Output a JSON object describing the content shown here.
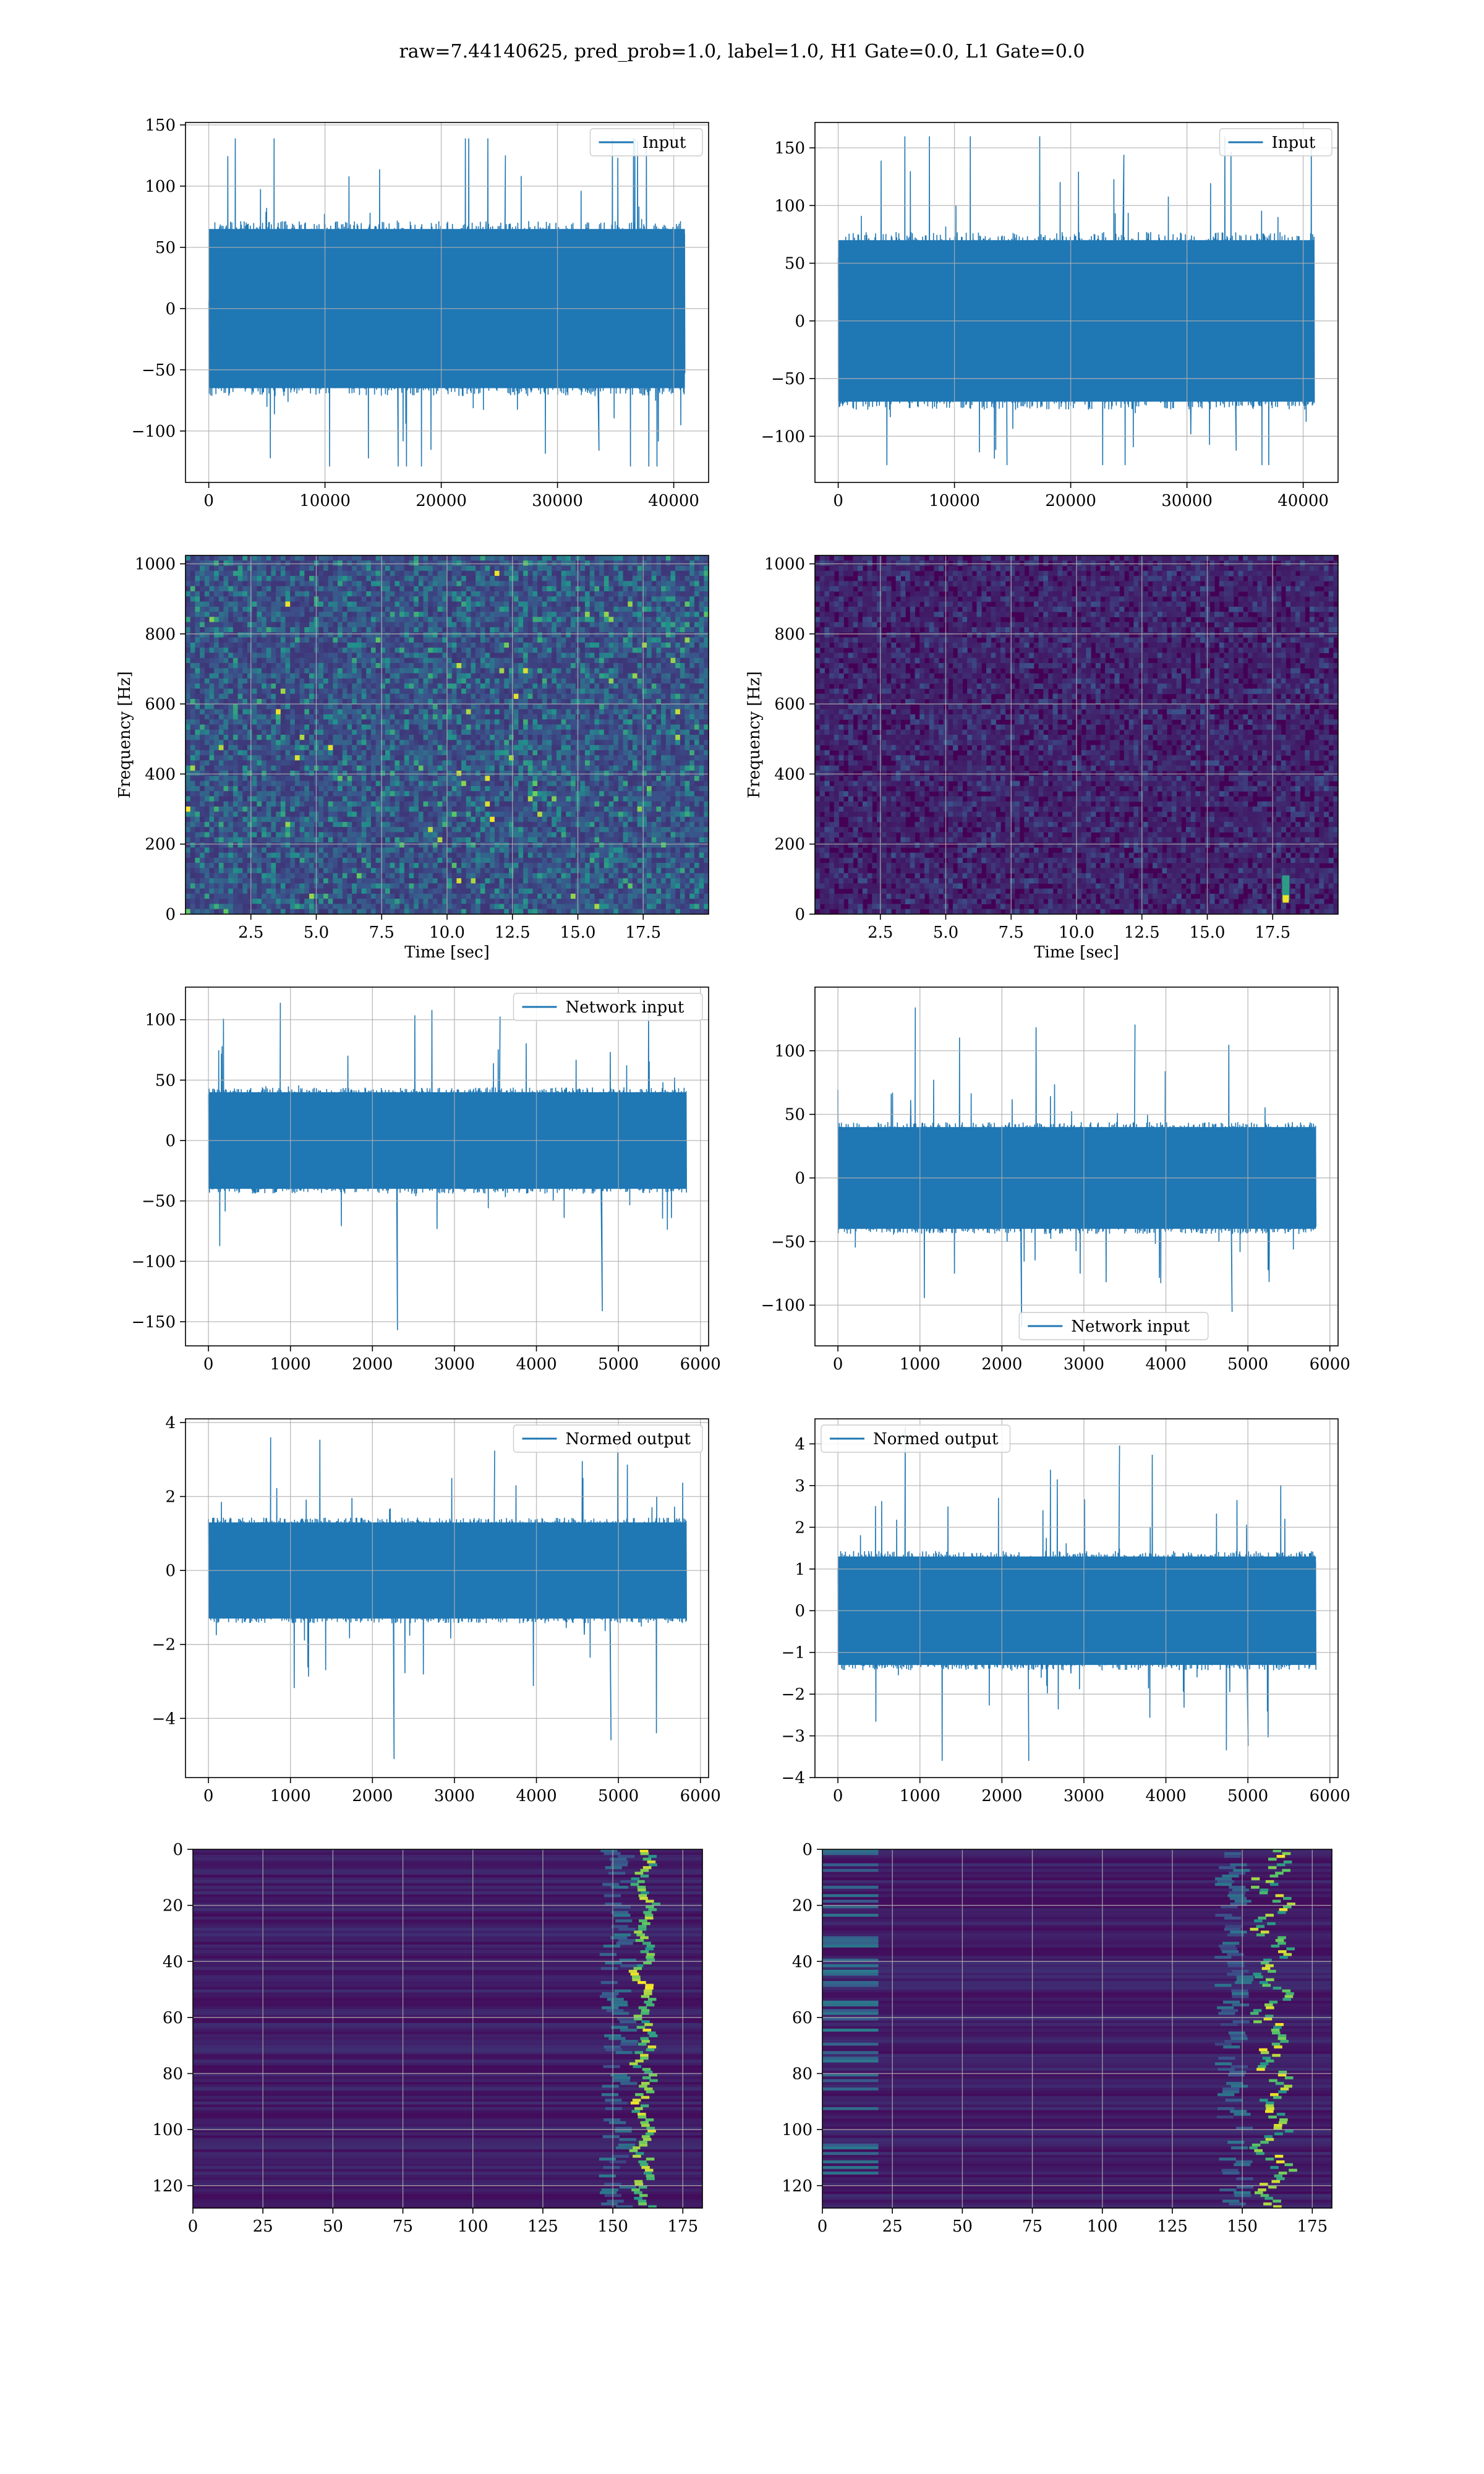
{
  "figure": {
    "title": "raw=7.44140625, pred_prob=1.0, label=1.0, H1 Gate=0.0, L1 Gate=0.0"
  },
  "colors": {
    "line": "#1f77b4",
    "grid": "#b0b0b0",
    "viridis": [
      "#440154",
      "#3b528b",
      "#21918c",
      "#5ec962",
      "#fde725"
    ]
  },
  "chart_data": [
    {
      "id": "p1",
      "type": "line",
      "title": "",
      "xlabel": "",
      "ylabel": "",
      "xlim": [
        -2000,
        43000
      ],
      "ylim": [
        -142,
        152
      ],
      "xticks": [
        0,
        10000,
        20000,
        30000,
        40000
      ],
      "xticklabels": [
        "0",
        "10000",
        "20000",
        "30000",
        "40000"
      ],
      "yticks": [
        -100,
        -50,
        0,
        50,
        100,
        150
      ],
      "yticklabels": [
        "−100",
        "−50",
        "0",
        "50",
        "100",
        "150"
      ],
      "grid": true,
      "legend": {
        "loc": "upper right",
        "entries": [
          "Input"
        ]
      },
      "series": [
        {
          "name": "Input",
          "x_range": [
            0,
            40960
          ],
          "y_envelope": [
            -129,
            139
          ],
          "typical_band": [
            -65,
            65
          ]
        }
      ]
    },
    {
      "id": "p2",
      "type": "line",
      "title": "",
      "xlabel": "",
      "ylabel": "",
      "xlim": [
        -2000,
        43000
      ],
      "ylim": [
        -140,
        172
      ],
      "xticks": [
        0,
        10000,
        20000,
        30000,
        40000
      ],
      "xticklabels": [
        "0",
        "10000",
        "20000",
        "30000",
        "40000"
      ],
      "yticks": [
        -100,
        -50,
        0,
        50,
        100,
        150
      ],
      "yticklabels": [
        "−100",
        "−50",
        "0",
        "50",
        "100",
        "150"
      ],
      "grid": true,
      "legend": {
        "loc": "upper right",
        "entries": [
          "Input"
        ]
      },
      "series": [
        {
          "name": "Input",
          "x_range": [
            0,
            40960
          ],
          "y_envelope": [
            -125,
            160
          ],
          "typical_band": [
            -70,
            70
          ]
        }
      ]
    },
    {
      "id": "p3",
      "type": "heatmap",
      "title": "",
      "xlabel": "Time [sec]",
      "ylabel": "Frequency [Hz]",
      "xlim": [
        0,
        20
      ],
      "ylim": [
        0,
        1024
      ],
      "xticks": [
        2.5,
        5,
        7.5,
        10,
        12.5,
        15,
        17.5
      ],
      "xticklabels": [
        "2.5",
        "5.0",
        "7.5",
        "10.0",
        "12.5",
        "15.0",
        "17.5"
      ],
      "yticks": [
        0,
        200,
        400,
        600,
        800,
        1000
      ],
      "yticklabels": [
        "0",
        "200",
        "400",
        "600",
        "800",
        "1000"
      ],
      "grid": true,
      "colormap": "viridis",
      "intensity": "medium"
    },
    {
      "id": "p4",
      "type": "heatmap",
      "title": "",
      "xlabel": "Time [sec]",
      "ylabel": "Frequency [Hz]",
      "xlim": [
        0,
        20
      ],
      "ylim": [
        0,
        1024
      ],
      "xticks": [
        2.5,
        5,
        7.5,
        10,
        12.5,
        15,
        17.5
      ],
      "xticklabels": [
        "2.5",
        "5.0",
        "7.5",
        "10.0",
        "12.5",
        "15.0",
        "17.5"
      ],
      "yticks": [
        0,
        200,
        400,
        600,
        800,
        1000
      ],
      "yticklabels": [
        "0",
        "200",
        "400",
        "600",
        "800",
        "1000"
      ],
      "grid": true,
      "colormap": "viridis",
      "intensity": "low",
      "bright_spot": {
        "time": 18,
        "freq": 40
      }
    },
    {
      "id": "p5",
      "type": "line",
      "title": "",
      "xlabel": "",
      "ylabel": "",
      "xlim": [
        -280,
        6100
      ],
      "ylim": [
        -170,
        127
      ],
      "xticks": [
        0,
        1000,
        2000,
        3000,
        4000,
        5000,
        6000
      ],
      "xticklabels": [
        "0",
        "1000",
        "2000",
        "3000",
        "4000",
        "5000",
        "6000"
      ],
      "yticks": [
        -150,
        -100,
        -50,
        0,
        50,
        100
      ],
      "yticklabels": [
        "−150",
        "−100",
        "−50",
        "0",
        "50",
        "100"
      ],
      "grid": true,
      "legend": {
        "loc": "upper right",
        "entries": [
          "Network input"
        ]
      },
      "series": [
        {
          "name": "Network input",
          "x_range": [
            0,
            5830
          ],
          "y_envelope": [
            -157,
            114
          ],
          "typical_band": [
            -40,
            40
          ]
        }
      ]
    },
    {
      "id": "p6",
      "type": "line",
      "title": "",
      "xlabel": "",
      "ylabel": "",
      "xlim": [
        -280,
        6100
      ],
      "ylim": [
        -132,
        150
      ],
      "xticks": [
        0,
        1000,
        2000,
        3000,
        4000,
        5000,
        6000
      ],
      "xticklabels": [
        "0",
        "1000",
        "2000",
        "3000",
        "4000",
        "5000",
        "6000"
      ],
      "yticks": [
        -100,
        -50,
        0,
        50,
        100
      ],
      "yticklabels": [
        "−100",
        "−50",
        "0",
        "50",
        "100"
      ],
      "grid": true,
      "legend": {
        "loc": "lower center",
        "entries": [
          "Network input"
        ]
      },
      "series": [
        {
          "name": "Network input",
          "x_range": [
            0,
            5830
          ],
          "y_envelope": [
            -117,
            134
          ],
          "typical_band": [
            -40,
            40
          ]
        }
      ]
    },
    {
      "id": "p7",
      "type": "line",
      "title": "",
      "xlabel": "",
      "ylabel": "",
      "xlim": [
        -280,
        6100
      ],
      "ylim": [
        -5.6,
        4.1
      ],
      "xticks": [
        0,
        1000,
        2000,
        3000,
        4000,
        5000,
        6000
      ],
      "xticklabels": [
        "0",
        "1000",
        "2000",
        "3000",
        "4000",
        "5000",
        "6000"
      ],
      "yticks": [
        -4,
        -2,
        0,
        2,
        4
      ],
      "yticklabels": [
        "−4",
        "−2",
        "0",
        "2",
        "4"
      ],
      "grid": true,
      "legend": {
        "loc": "upper right",
        "entries": [
          "Normed output"
        ]
      },
      "series": [
        {
          "name": "Normed output",
          "x_range": [
            0,
            5830
          ],
          "y_envelope": [
            -5.1,
            3.6
          ],
          "typical_band": [
            -1.3,
            1.3
          ]
        }
      ]
    },
    {
      "id": "p8",
      "type": "line",
      "title": "",
      "xlabel": "",
      "ylabel": "",
      "xlim": [
        -280,
        6100
      ],
      "ylim": [
        -4.0,
        4.6
      ],
      "xticks": [
        0,
        1000,
        2000,
        3000,
        4000,
        5000,
        6000
      ],
      "xticklabels": [
        "0",
        "1000",
        "2000",
        "3000",
        "4000",
        "5000",
        "6000"
      ],
      "yticks": [
        -4,
        -3,
        -2,
        -1,
        0,
        1,
        2,
        3,
        4
      ],
      "yticklabels": [
        "−4",
        "−3",
        "−2",
        "−1",
        "0",
        "1",
        "2",
        "3",
        "4"
      ],
      "grid": true,
      "legend": {
        "loc": "upper left",
        "entries": [
          "Normed output"
        ]
      },
      "series": [
        {
          "name": "Normed output",
          "x_range": [
            0,
            5830
          ],
          "y_envelope": [
            -3.6,
            4.4
          ],
          "typical_band": [
            -1.3,
            1.3
          ]
        }
      ]
    },
    {
      "id": "p9",
      "type": "heatmap",
      "title": "",
      "xlabel": "",
      "ylabel": "",
      "xlim": [
        0,
        182
      ],
      "ylim": [
        128,
        0
      ],
      "xticks": [
        0,
        25,
        50,
        75,
        100,
        125,
        150,
        175
      ],
      "xticklabels": [
        "0",
        "25",
        "50",
        "75",
        "100",
        "125",
        "150",
        "175"
      ],
      "yticks": [
        0,
        20,
        40,
        60,
        80,
        100,
        120
      ],
      "yticklabels": [
        "0",
        "20",
        "40",
        "60",
        "80",
        "100",
        "120"
      ],
      "grid": true,
      "colormap": "viridis",
      "bright_band_x": [
        155,
        168
      ]
    },
    {
      "id": "p10",
      "type": "heatmap",
      "title": "",
      "xlabel": "",
      "ylabel": "",
      "xlim": [
        0,
        182
      ],
      "ylim": [
        128,
        0
      ],
      "xticks": [
        0,
        25,
        50,
        75,
        100,
        125,
        150,
        175
      ],
      "xticklabels": [
        "0",
        "25",
        "50",
        "75",
        "100",
        "125",
        "150",
        "175"
      ],
      "yticks": [
        0,
        20,
        40,
        60,
        80,
        100,
        120
      ],
      "yticklabels": [
        "0",
        "20",
        "40",
        "60",
        "80",
        "100",
        "120"
      ],
      "grid": true,
      "colormap": "viridis",
      "bright_band_x": [
        150,
        172
      ]
    }
  ]
}
